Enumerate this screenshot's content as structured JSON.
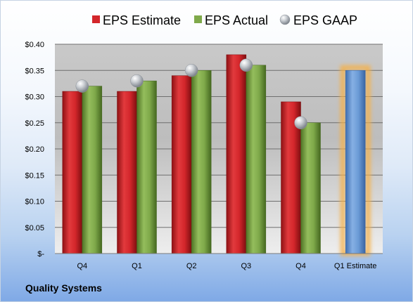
{
  "footer": {
    "company": "Quality Systems"
  },
  "chart_data": {
    "type": "bar",
    "categories": [
      "Q4",
      "Q1",
      "Q2",
      "Q3",
      "Q4",
      "Q1 Estimate"
    ],
    "ylim": [
      0,
      0.4
    ],
    "yticks": [
      0,
      0.05,
      0.1,
      0.15,
      0.2,
      0.25,
      0.3,
      0.35,
      0.4
    ],
    "ytick_labels": [
      "$-",
      "$0.05",
      "$0.10",
      "$0.15",
      "$0.20",
      "$0.25",
      "$0.30",
      "$0.35",
      "$0.40"
    ],
    "grid": true,
    "legend_position": "top",
    "series": [
      {
        "name": "EPS Estimate",
        "kind": "bar",
        "color": "#d3262b",
        "values": [
          0.31,
          0.31,
          0.34,
          0.38,
          0.29,
          null
        ]
      },
      {
        "name": "EPS Actual",
        "kind": "bar",
        "color": "#7fa94a",
        "values": [
          0.32,
          0.33,
          0.35,
          0.36,
          0.25,
          null
        ]
      },
      {
        "name": "EPS GAAP",
        "kind": "marker",
        "color": "#b9bec4",
        "values": [
          0.32,
          0.33,
          0.35,
          0.36,
          0.25,
          null
        ]
      }
    ],
    "estimate_bar": {
      "category_index": 5,
      "value": 0.35,
      "color": "#6b9bd6",
      "glow_color": "#f5b14a"
    }
  }
}
